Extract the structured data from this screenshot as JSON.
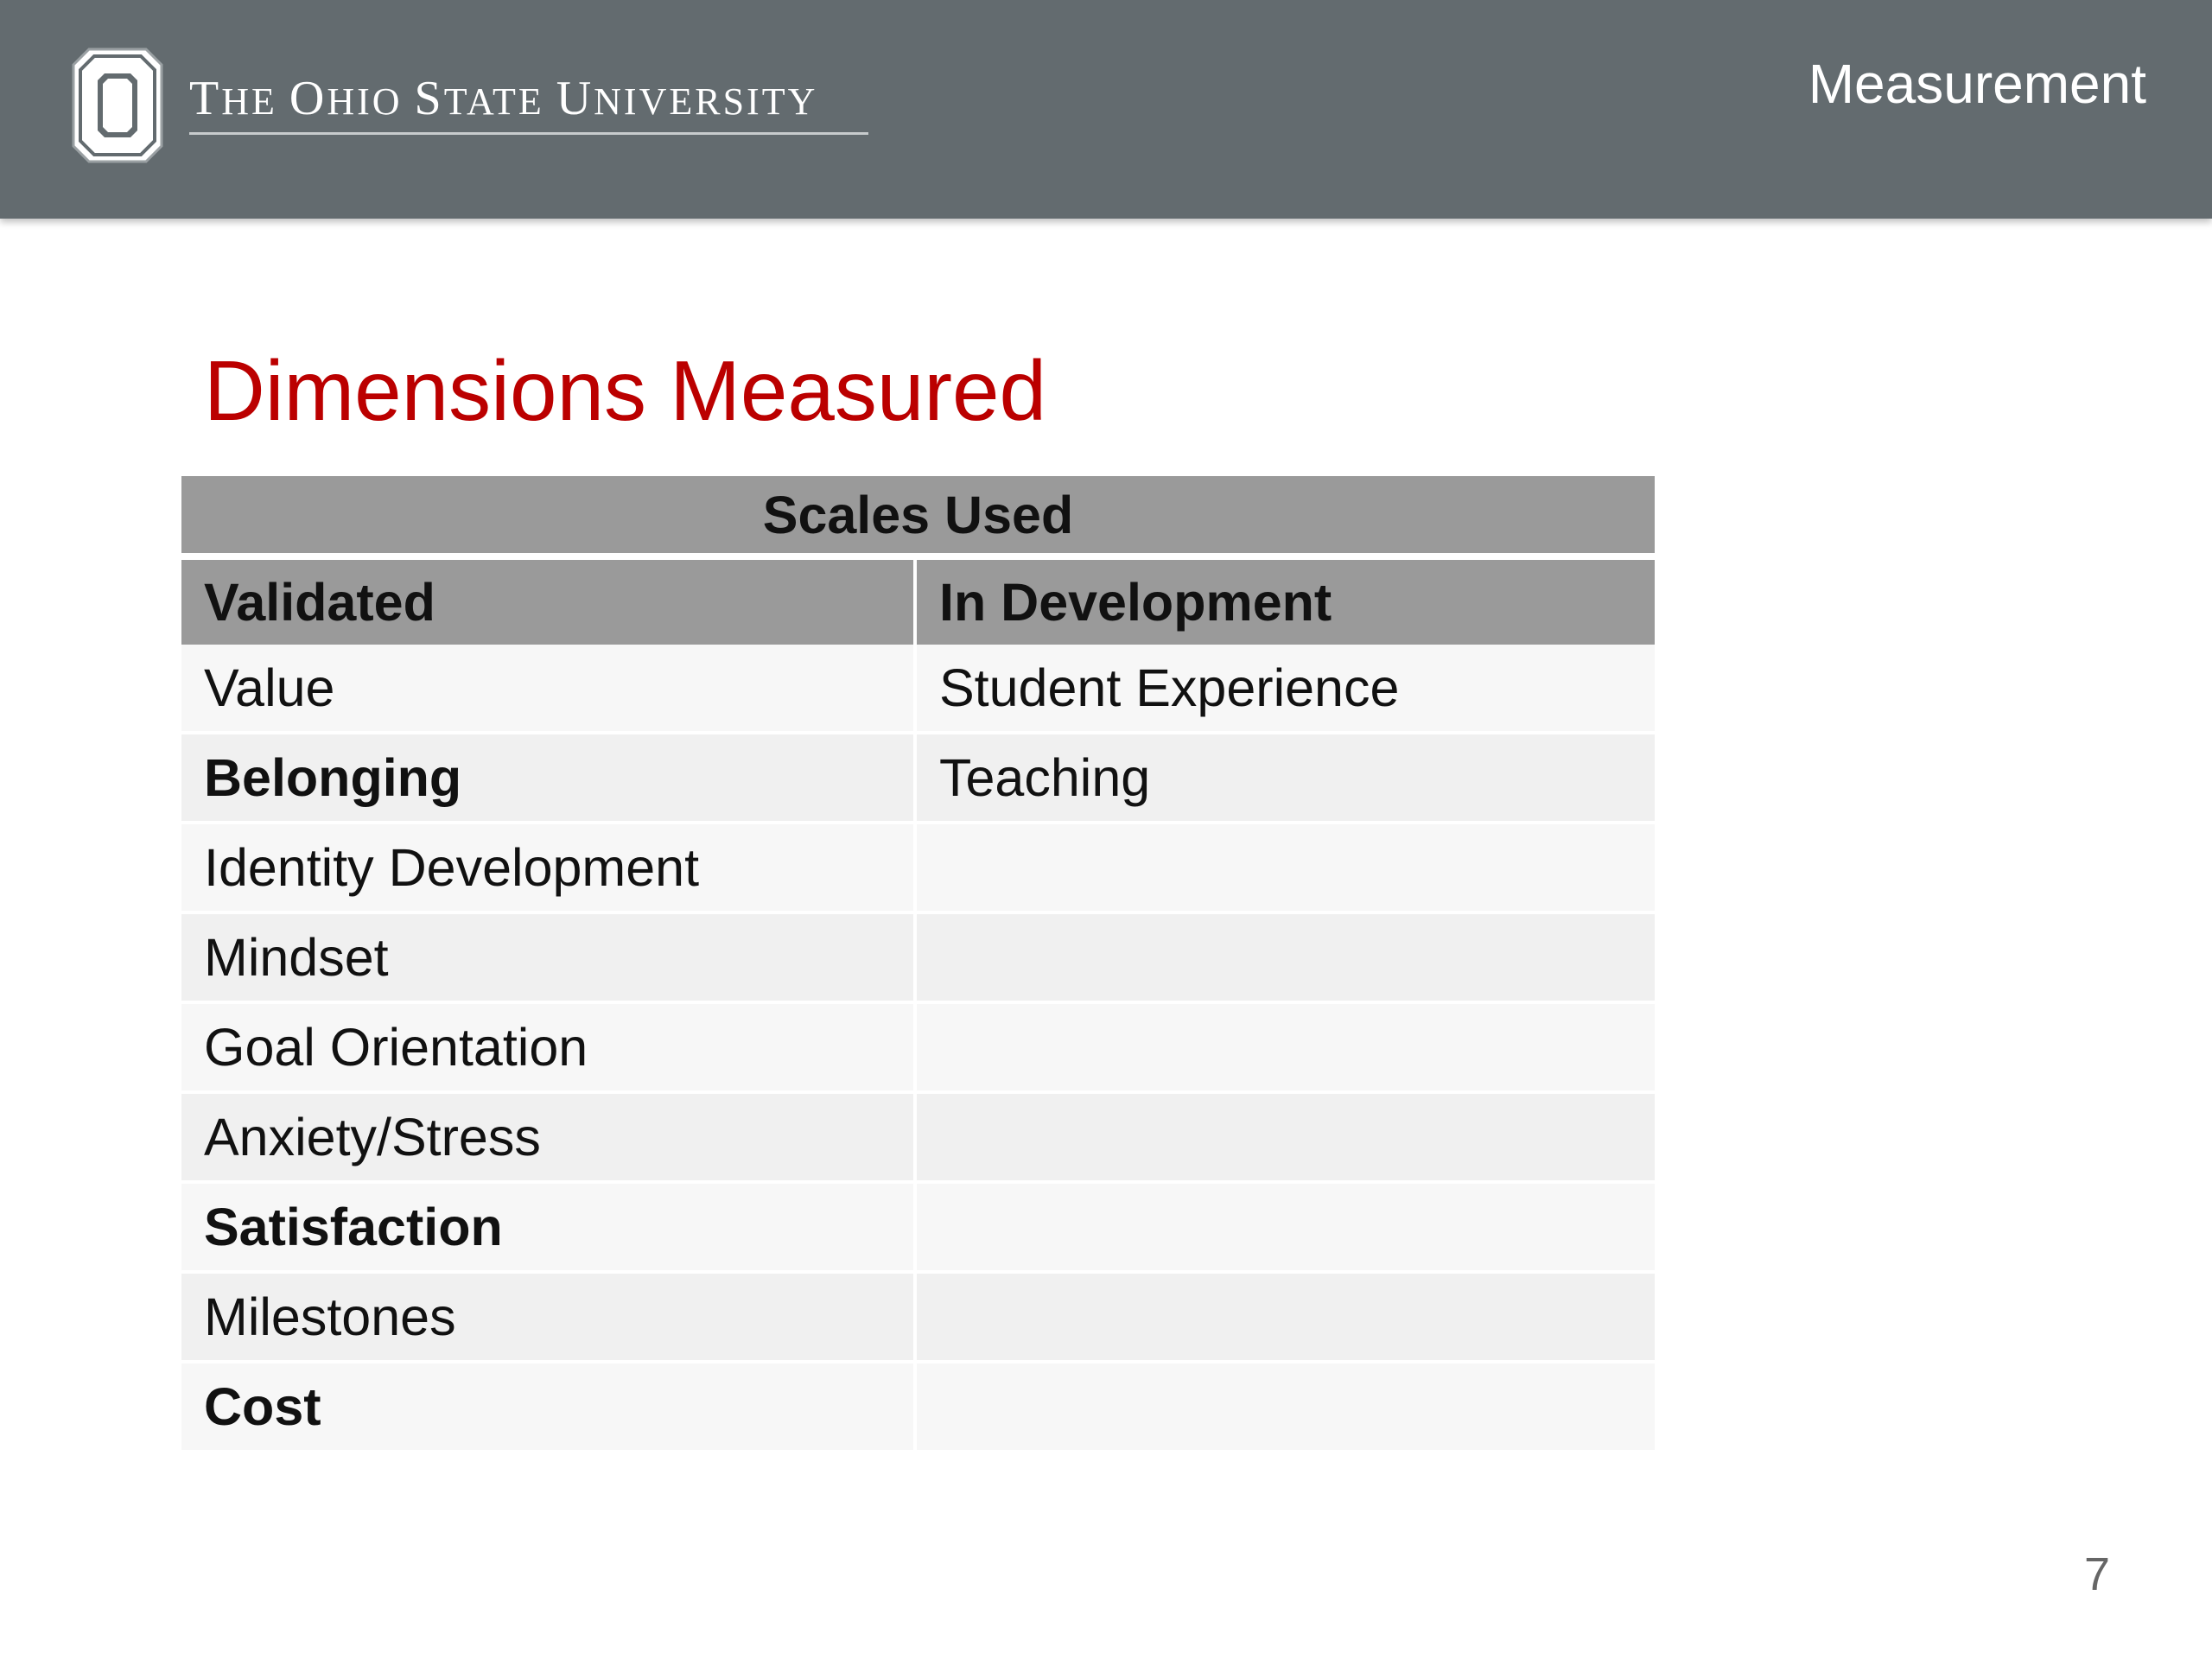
{
  "header": {
    "university_name_parts": {
      "t1": "T",
      "t2": "HE ",
      "o1": "O",
      "o2": "HIO ",
      "s1": "S",
      "s2": "TATE ",
      "u1": "U",
      "u2": "NIVERSITY"
    },
    "section_label": "Measurement"
  },
  "slide": {
    "title": "Dimensions Measured",
    "page_number": "7"
  },
  "table": {
    "title": "Scales Used",
    "columns": [
      "Validated",
      "In Development"
    ],
    "rows": [
      {
        "validated": "Value",
        "validated_bold": false,
        "in_development": "Student Experience"
      },
      {
        "validated": "Belonging",
        "validated_bold": true,
        "in_development": "Teaching"
      },
      {
        "validated": "Identity Development",
        "validated_bold": false,
        "in_development": ""
      },
      {
        "validated": "Mindset",
        "validated_bold": false,
        "in_development": ""
      },
      {
        "validated": "Goal Orientation",
        "validated_bold": false,
        "in_development": ""
      },
      {
        "validated": "Anxiety/Stress",
        "validated_bold": false,
        "in_development": ""
      },
      {
        "validated": "Satisfaction",
        "validated_bold": true,
        "in_development": ""
      },
      {
        "validated": "Milestones",
        "validated_bold": false,
        "in_development": ""
      },
      {
        "validated": "Cost",
        "validated_bold": true,
        "in_development": ""
      }
    ]
  },
  "colors": {
    "header_bg": "#636b6f",
    "title_red": "#bb0000",
    "table_header_bg": "#9a9a9a"
  }
}
